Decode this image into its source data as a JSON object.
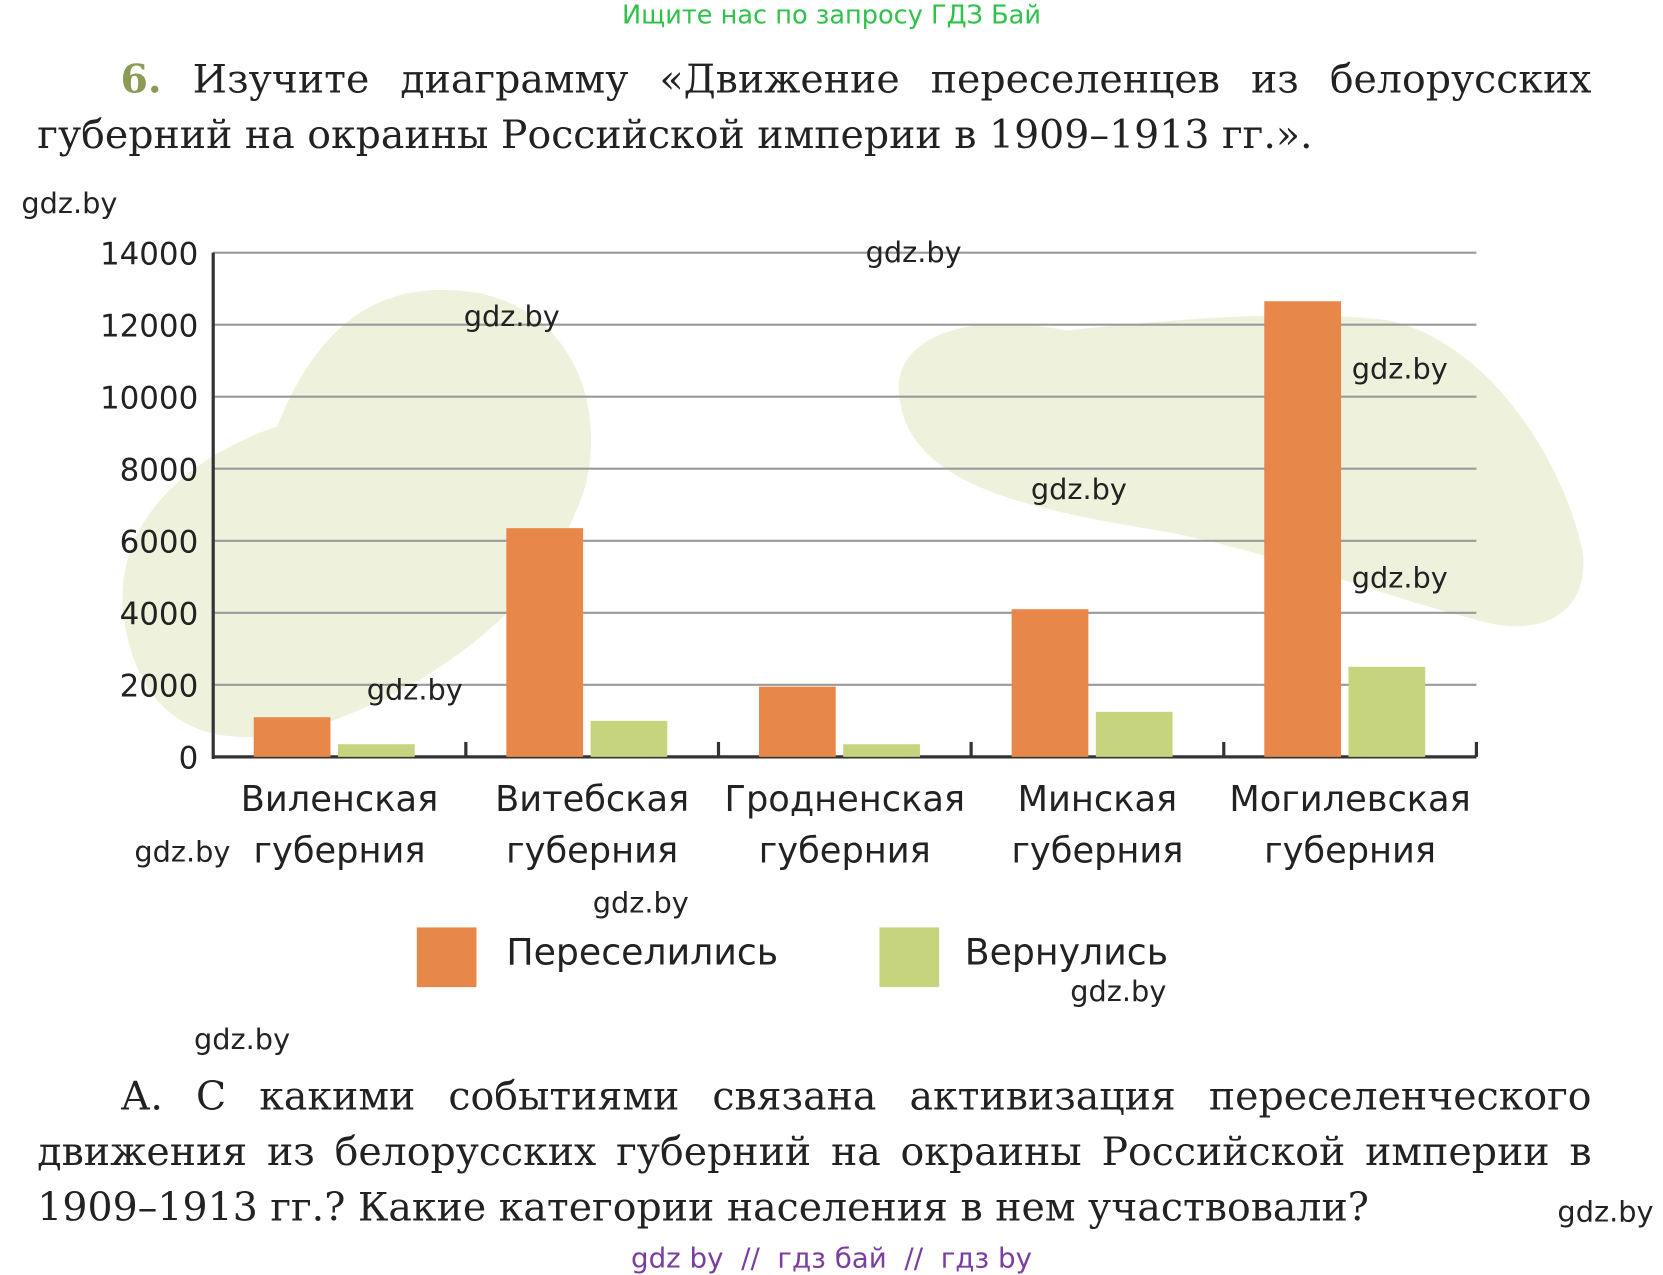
{
  "header": {
    "banner": "Ищите нас по запросу ГДЗ Бай"
  },
  "task": {
    "number": "6.",
    "text": "Изучите диаграмму «Движение переселенцев из белорусских губерний на окраины Российской империи в 1909–1913 гг.»."
  },
  "chart_data": {
    "type": "bar",
    "categories": [
      "Виленская губерния",
      "Витебская губерния",
      "Гродненская губерния",
      "Минская губерния",
      "Могилевская губерния"
    ],
    "series": [
      {
        "name": "Переселились",
        "color": "#e8874a",
        "values": [
          1100,
          6350,
          1950,
          4100,
          12650
        ]
      },
      {
        "name": "Вернулись",
        "color": "#c6d47e",
        "values": [
          350,
          1000,
          350,
          1250,
          2500
        ]
      }
    ],
    "ylim": [
      0,
      14000
    ],
    "yticks": [
      0,
      2000,
      4000,
      6000,
      8000,
      10000,
      12000,
      14000
    ],
    "grid": true
  },
  "question": {
    "label": "А.",
    "text": "С какими событиями связана активизация переселенческого движения из белорусских губерний на окраины Российской империи в 1909–1913 гг.? Какие категории населения в нем участвовали?"
  },
  "watermarks": [
    "gdz.by",
    "gdz.by",
    "gdz.by",
    "gdz.by",
    "gdz.by",
    "gdz.by",
    "gdz.by",
    "gdz.by",
    "gdz.by",
    "gdz.by",
    "gdz.by",
    "gdz.by"
  ],
  "footer": "gdz by  //  гдз бай  //  гдз by"
}
